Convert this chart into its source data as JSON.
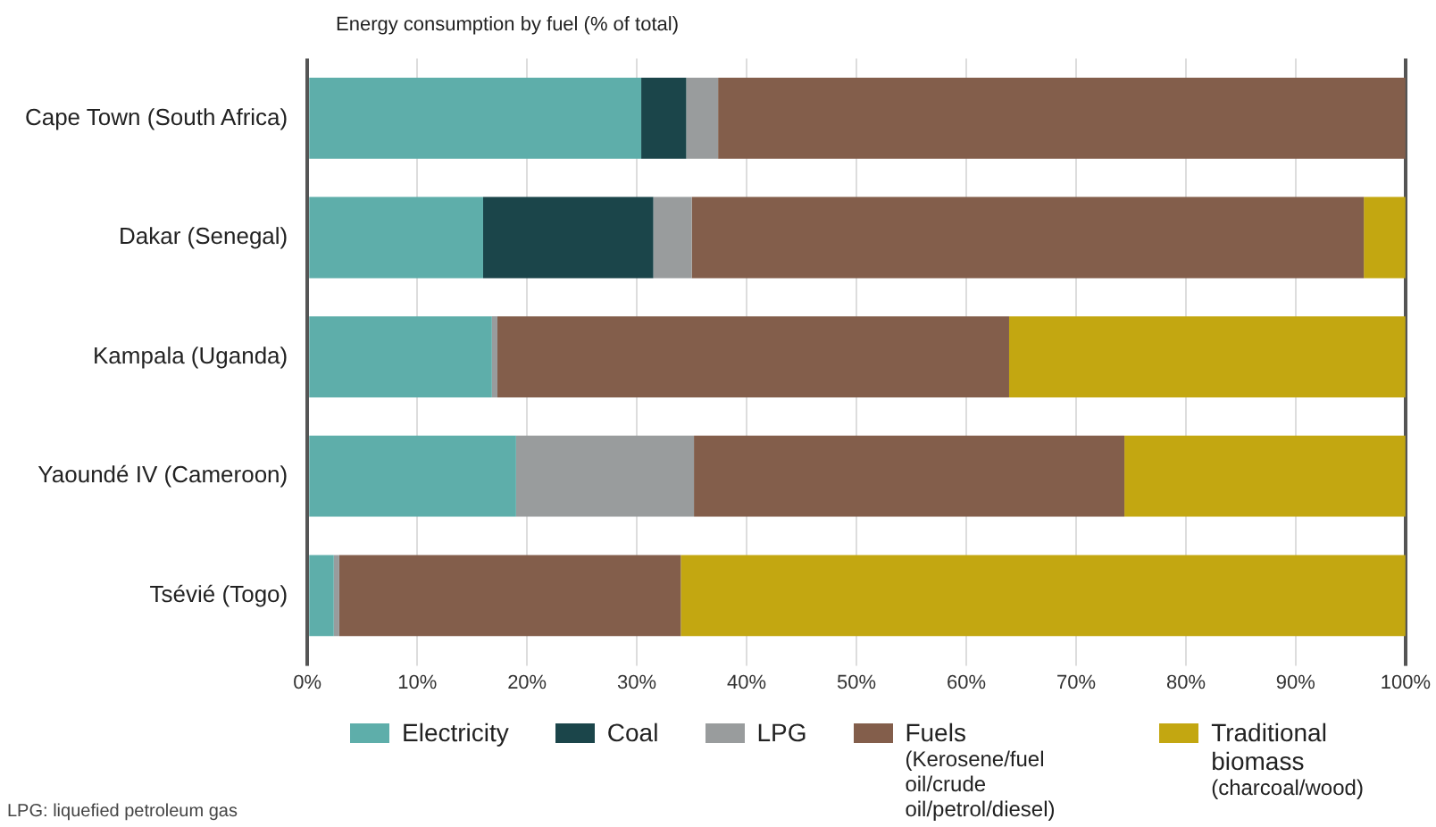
{
  "chart_data": {
    "type": "bar",
    "orientation": "horizontal",
    "stacked": true,
    "title": "Energy consumption by fuel (% of total)",
    "categories": [
      "Cape Town (South Africa)",
      "Dakar (Senegal)",
      "Kampala (Uganda)",
      "Yaoundé IV (Cameroon)",
      "Tsévié (Togo)"
    ],
    "series": [
      {
        "name": "Electricity",
        "color": "#5eaeaa",
        "values": [
          30.4,
          16.0,
          16.8,
          19.0,
          2.4
        ]
      },
      {
        "name": "Coal",
        "color": "#1b454a",
        "values": [
          4.1,
          15.5,
          null,
          null,
          null
        ]
      },
      {
        "name": "LPG",
        "color": "#999c9d",
        "values": [
          2.9,
          3.5,
          0.5,
          16.2,
          0.5
        ]
      },
      {
        "name": "Fuels (Kerosene/fuel oil/crude oil/petrol/diesel)",
        "color": "#835e4b",
        "values": [
          62.6,
          61.2,
          46.6,
          39.2,
          31.1
        ]
      },
      {
        "name": "Traditional biomass (charcoal/wood)",
        "color": "#c3a711",
        "values": [
          null,
          3.8,
          36.1,
          25.6,
          66.0
        ]
      }
    ],
    "xlim": [
      0,
      100
    ],
    "xticks": [
      {
        "value": 0,
        "label": "0%"
      },
      {
        "value": 10,
        "label": "10%"
      },
      {
        "value": 20,
        "label": "20%"
      },
      {
        "value": 30,
        "label": "30%"
      },
      {
        "value": 40,
        "label": "40%"
      },
      {
        "value": 50,
        "label": "50%"
      },
      {
        "value": 60,
        "label": "60%"
      },
      {
        "value": 70,
        "label": "70%"
      },
      {
        "value": 80,
        "label": "80%"
      },
      {
        "value": 90,
        "label": "90%"
      },
      {
        "value": 100,
        "label": "100%"
      }
    ],
    "grid": "x",
    "legend": "bottom",
    "annotations": [
      "LPG: liquefied petroleum gas"
    ]
  }
}
